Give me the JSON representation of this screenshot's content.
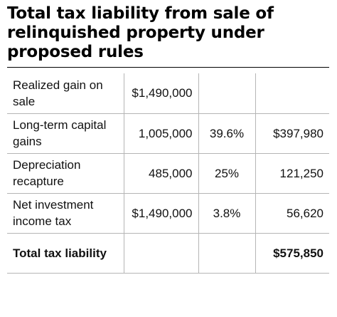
{
  "title": "Total tax liability from sale of relinquished property under proposed rules",
  "rows": [
    {
      "label": "Realized gain on sale",
      "amount": "$1,490,000",
      "rate": "",
      "tax": ""
    },
    {
      "label": "Long-term capital gains",
      "amount": "1,005,000",
      "rate": "39.6%",
      "tax": "$397,980"
    },
    {
      "label": "Depreciation recapture",
      "amount": "485,000",
      "rate": "25%",
      "tax": "121,250"
    },
    {
      "label": "Net investment income tax",
      "amount": "$1,490,000",
      "rate": "3.8%",
      "tax": "56,620"
    },
    {
      "label": "Total tax liability",
      "amount": "",
      "rate": "",
      "tax": "$575,850"
    }
  ]
}
